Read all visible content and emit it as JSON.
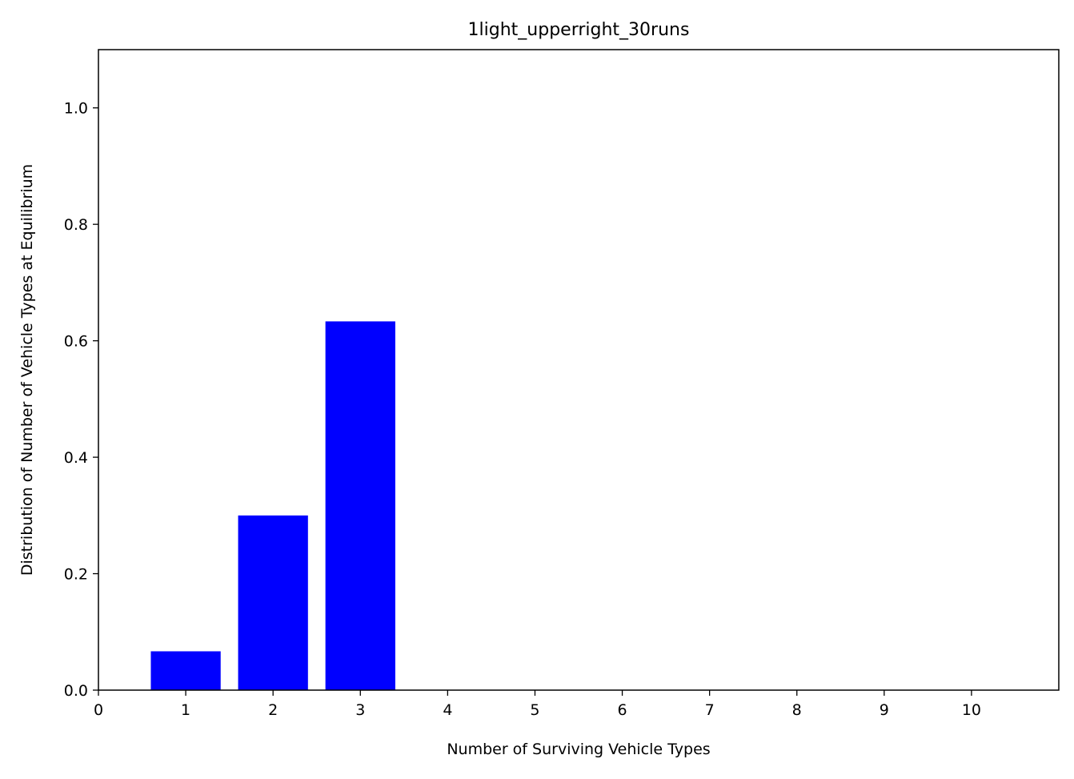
{
  "chart_data": {
    "type": "bar",
    "title": "1light_upperright_30runs",
    "xlabel": "Number of Surviving Vehicle Types",
    "ylabel": "Distribution of Number of Vehicle Types at Equilibrium",
    "categories": [
      1,
      2,
      3
    ],
    "values": [
      0.0667,
      0.3,
      0.6333
    ],
    "bar_color": "#0000ff",
    "xlim": [
      0,
      11
    ],
    "ylim": [
      0,
      1.1
    ],
    "xticks": [
      "0",
      "1",
      "2",
      "3",
      "4",
      "5",
      "6",
      "7",
      "8",
      "9",
      "10"
    ],
    "yticks": [
      "0.0",
      "0.2",
      "0.4",
      "0.6",
      "0.8",
      "1.0"
    ],
    "grid": false,
    "legend": "none"
  }
}
